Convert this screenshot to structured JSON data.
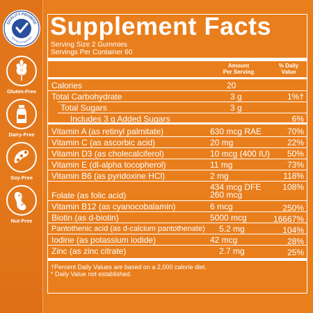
{
  "panel": {
    "title": "Supplement Facts",
    "serving_size": "Serving Size 2 Gummies",
    "servings_per_container": "Servings Per Container 60",
    "col_amount_1": "Amount",
    "col_amount_2": "Per Serving",
    "col_dv_1": "% Daily",
    "col_dv_2": "Value",
    "rows": [
      {
        "name": "Calories",
        "amount": "20",
        "dv": ""
      },
      {
        "name": "Total Carbohydrate",
        "amount": "3 g",
        "dv": "1%†"
      },
      {
        "name": "Total Sugars",
        "amount": "3 g",
        "dv": ""
      },
      {
        "name": "Includes 3 g Added Sugars",
        "amount": "",
        "dv": "6%"
      },
      {
        "name": "Vitamin A (as retinyl palmitate)",
        "amount": "630 mcg RAE",
        "dv": "70%"
      },
      {
        "name": "Vitamin C (as ascorbic acid)",
        "amount": "20 mg",
        "dv": "22%"
      },
      {
        "name": "Vitamin D3 (as cholecalciferol)",
        "amount": "10 mcg (400 IU)",
        "dv": "50%"
      },
      {
        "name": "Vitamin E (dl-alpha tocopherol)",
        "amount": "11 mg",
        "dv": "73%"
      },
      {
        "name": "Vitamin B6 (as pyridoxine HCl)",
        "amount": "2 mg",
        "dv": "118%"
      },
      {
        "name": "Folate (as folic acid)",
        "amount": "434 mcg DFE",
        "amount2": "260 mcg",
        "dv": "108%"
      },
      {
        "name": "Vitamin B12 (as cyanocobalamin)",
        "amount": "6 mcg",
        "dv": "250%"
      },
      {
        "name": "Biotin (as d-biotin)",
        "amount": "5000 mcg",
        "dv": "16667%"
      },
      {
        "name": "Pantothenic acid (as d-calcium pantothenate)",
        "amount": "5.2 mg",
        "dv": "104%"
      },
      {
        "name": "Iodine (as potassium iodide)",
        "amount": "42 mcg",
        "dv": "28%"
      },
      {
        "name": "Zinc (as zinc citrate)",
        "amount": "2.7 mg",
        "dv": "25%"
      }
    ],
    "footnote_1": "†Percent Daily Values are based on a 2,000 calorie diet.",
    "footnote_2": "* Daily Value not established."
  },
  "sidebar": {
    "seal_text": "QUALITY PROMISE",
    "seal_subtext": "TESTED & TRUSTED",
    "badges": [
      {
        "label": "Gluten-Free",
        "icon": "wheat-icon"
      },
      {
        "label": "Dairy-Free",
        "icon": "milk-bottle-icon"
      },
      {
        "label": "Soy-Free",
        "icon": "soybean-icon"
      },
      {
        "label": "Nut-Free",
        "icon": "peanut-icon"
      }
    ]
  },
  "colors": {
    "background": "#e97e1c",
    "text": "#ffffff",
    "seal_blue": "#2a4f9c"
  }
}
